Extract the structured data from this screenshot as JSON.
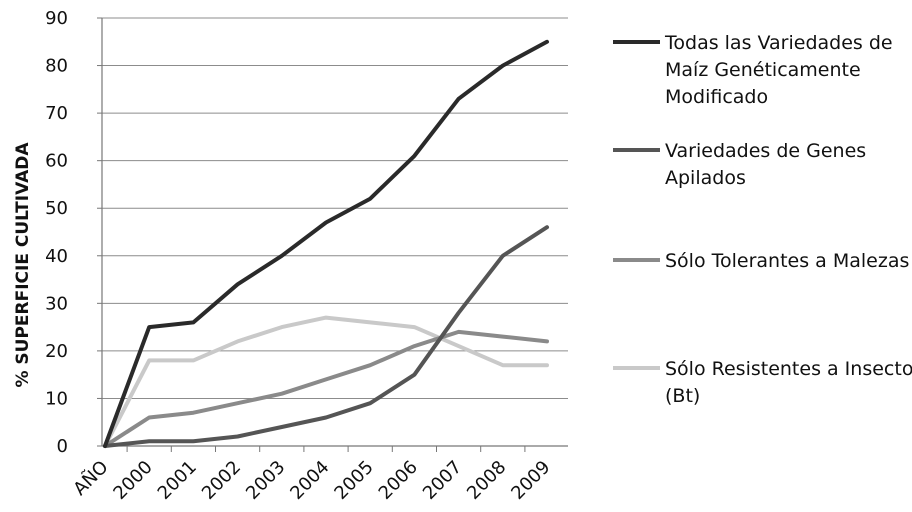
{
  "chart_data": {
    "type": "line",
    "categories": [
      "AÑO",
      "2000",
      "2001",
      "2002",
      "2003",
      "2004",
      "2005",
      "2006",
      "2007",
      "2008",
      "2009"
    ],
    "ylabel": "% SUPERFICIE CULTIVADA",
    "xlabel": "",
    "ylim": [
      0,
      90
    ],
    "yticks": [
      0,
      10,
      20,
      30,
      40,
      50,
      60,
      70,
      80,
      90
    ],
    "grid": true,
    "legend_position": "right",
    "series": [
      {
        "name": "Todas las Variedades de Maíz Genéticamente Modificado",
        "legend_lines": [
          "Todas las Variedades de",
          "Maíz Genéticamente",
          "Modificado"
        ],
        "color": "#2a2a2a",
        "values": [
          0,
          25,
          26,
          34,
          40,
          47,
          52,
          61,
          73,
          80,
          85
        ]
      },
      {
        "name": "Variedades de Genes Apilados",
        "legend_lines": [
          "Variedades de Genes",
          "Apilados"
        ],
        "color": "#555555",
        "values": [
          0,
          1,
          1,
          2,
          4,
          6,
          9,
          15,
          28,
          40,
          46
        ]
      },
      {
        "name": "Sólo Tolerantes a Malezas",
        "legend_lines": [
          "Sólo Tolerantes a Malezas"
        ],
        "color": "#8a8a8a",
        "values": [
          0,
          6,
          7,
          9,
          11,
          14,
          17,
          21,
          24,
          23,
          22
        ]
      },
      {
        "name": "Sólo Resistentes a Insectos (Bt)",
        "legend_lines": [
          "Sólo Resistentes a Insectos",
          "(Bt)"
        ],
        "color": "#c9c9c9",
        "values": [
          0,
          18,
          18,
          22,
          25,
          27,
          26,
          25,
          21,
          17,
          17
        ]
      }
    ]
  }
}
